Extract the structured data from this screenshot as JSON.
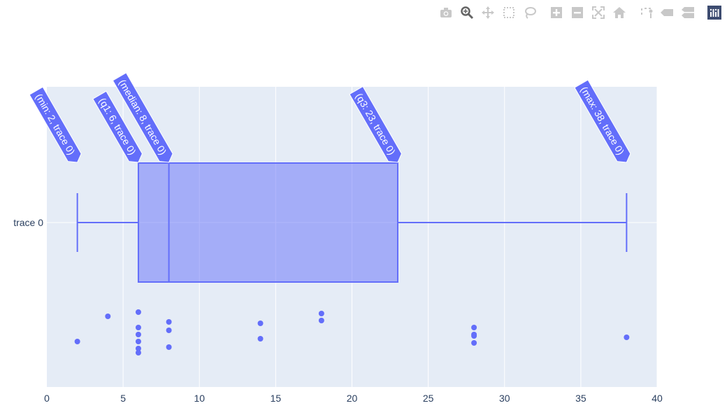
{
  "modebar": {
    "tools": [
      {
        "name": "camera-icon",
        "title": "Download plot as a png"
      },
      {
        "name": "zoom-icon",
        "title": "Zoom"
      },
      {
        "name": "pan-icon",
        "title": "Pan"
      },
      {
        "name": "box-select-icon",
        "title": "Box Select"
      },
      {
        "name": "lasso-select-icon",
        "title": "Lasso Select"
      },
      {
        "name": "zoom-in-icon",
        "title": "Zoom in"
      },
      {
        "name": "zoom-out-icon",
        "title": "Zoom out"
      },
      {
        "name": "autoscale-icon",
        "title": "Autoscale"
      },
      {
        "name": "home-icon",
        "title": "Reset axes"
      },
      {
        "name": "spike-lines-icon",
        "title": "Toggle Spike Lines"
      },
      {
        "name": "hover-closest-icon",
        "title": "Show closest data on hover"
      },
      {
        "name": "hover-compare-icon",
        "title": "Compare data on hover"
      },
      {
        "name": "plotly-logo-icon",
        "title": "Produced with Plotly"
      }
    ],
    "active_tool": "zoom-icon",
    "icon_color": "#c8c8c8",
    "active_color": "#646464",
    "logo_color": "#3d4c70"
  },
  "chart_data": {
    "type": "box",
    "orientation": "horizontal",
    "series": [
      {
        "name": "trace 0",
        "min": 2,
        "q1": 6,
        "median": 8,
        "q3": 23,
        "max": 38,
        "points": [
          2,
          4,
          6,
          6,
          6,
          6,
          6,
          6,
          8,
          8,
          8,
          14,
          14,
          18,
          18,
          28,
          28,
          28,
          28,
          38
        ],
        "jitter_offsets": [
          0.29,
          0.11,
          0.34,
          0.29,
          0.24,
          0.19,
          0.37,
          0.08,
          0.21,
          0.33,
          0.15,
          0.27,
          0.16,
          0.14,
          0.09,
          0.19,
          0.3,
          0.25,
          0.24,
          0.26
        ]
      }
    ],
    "hover_labels": [
      {
        "stat": "min",
        "value": 2,
        "text": "(min: 2, trace 0)"
      },
      {
        "stat": "q1",
        "value": 6,
        "text": "(q1: 6, trace 0)"
      },
      {
        "stat": "median",
        "value": 8,
        "text": "(median: 8, trace 0)"
      },
      {
        "stat": "q3",
        "value": 23,
        "text": "(q3: 23, trace 0)"
      },
      {
        "stat": "max",
        "value": 38,
        "text": "(max: 38, trace 0)"
      }
    ],
    "category_label": "trace 0",
    "xlim": [
      0,
      40
    ],
    "xticks": [
      0,
      5,
      10,
      15,
      20,
      25,
      30,
      35,
      40
    ],
    "grid": true,
    "colors": {
      "line": "#636efa",
      "fill": "rgba(99,110,250,0.5)",
      "plot_bg": "#e5ecf6",
      "grid": "#ffffff",
      "tick_text": "#2a3f5f"
    }
  }
}
